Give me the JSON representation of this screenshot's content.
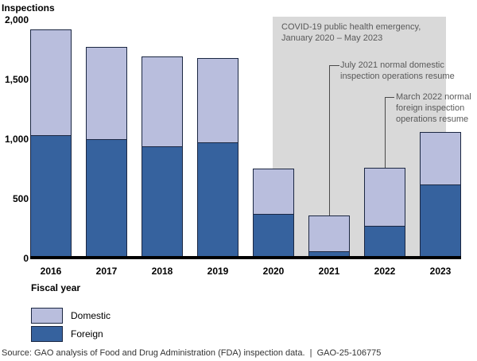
{
  "figure": {
    "y_axis_title": "Inspections",
    "x_axis_title": "Fiscal year",
    "source": "Source: GAO analysis of Food and Drug Administration (FDA) inspection data.  |  GAO-25-106775"
  },
  "colors": {
    "domestic": "#b9bedd",
    "foreign": "#36629e",
    "bar_border": "#1b2742",
    "covid_band": "#d9d9d9",
    "annotation_text": "#595959",
    "leader_line": "#4a4a4a",
    "axis": "#000000"
  },
  "legend": {
    "items": [
      {
        "label": "Domestic"
      },
      {
        "label": "Foreign"
      }
    ]
  },
  "annotations": {
    "covid": {
      "lines": [
        "COVID-19 public health emergency,",
        "January 2020 – May 2023"
      ]
    },
    "domestic_resume": {
      "lines": [
        "July 2021 normal domestic",
        "inspection operations resume"
      ],
      "points_to": "2021"
    },
    "foreign_resume": {
      "lines": [
        "March 2022 normal",
        "foreign inspection",
        "operations resume"
      ],
      "points_to": "2022"
    }
  },
  "chart_data": {
    "type": "bar",
    "stacked": true,
    "title": "",
    "xlabel": "Fiscal year",
    "ylabel": "Inspections",
    "ylim": [
      0,
      2000
    ],
    "ytick_labels": [
      "0",
      "500",
      "1,000",
      "1,500",
      "2,000"
    ],
    "grid": false,
    "legend_position": "bottom-left",
    "categories": [
      "2016",
      "2017",
      "2018",
      "2019",
      "2020",
      "2021",
      "2022",
      "2023"
    ],
    "series": [
      {
        "name": "Domestic",
        "color": "#b9bedd",
        "values": [
          890,
          770,
          750,
          710,
          380,
          300,
          490,
          440
        ]
      },
      {
        "name": "Foreign",
        "color": "#36629e",
        "values": [
          1030,
          1000,
          940,
          970,
          370,
          60,
          270,
          620
        ]
      }
    ],
    "band": {
      "label": "COVID-19 public health emergency",
      "span": "January 2020 – May 2023"
    }
  }
}
